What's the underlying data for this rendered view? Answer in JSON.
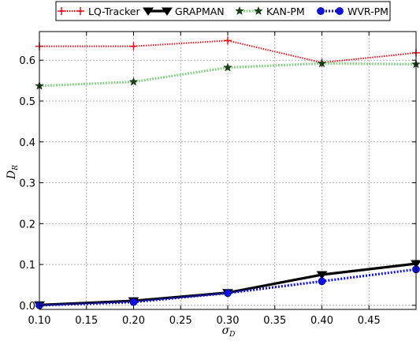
{
  "chart_data": {
    "type": "line",
    "title": "",
    "xlabel": "σ",
    "xlabel_sub": "D",
    "ylabel": "D",
    "ylabel_sub": "R",
    "x": [
      0.1,
      0.2,
      0.3,
      0.4,
      0.5
    ],
    "xlim": [
      0.1,
      0.5
    ],
    "ylim": [
      -0.01,
      0.67
    ],
    "xticks": [
      0.1,
      0.15,
      0.2,
      0.25,
      0.3,
      0.35,
      0.4,
      0.45
    ],
    "xtick_labels": [
      "0.10",
      "0.15",
      "0.20",
      "0.25",
      "0.30",
      "0.35",
      "0.40",
      "0.45"
    ],
    "yticks": [
      0.0,
      0.1,
      0.2,
      0.3,
      0.4,
      0.5,
      0.6
    ],
    "ytick_labels": [
      "0.0",
      "0.1",
      "0.2",
      "0.3",
      "0.4",
      "0.5",
      "0.6"
    ],
    "grid": true,
    "legend_position": "top-center",
    "series": [
      {
        "name": "LQ-Tracker",
        "values": [
          0.634,
          0.634,
          0.648,
          0.594,
          0.618
        ],
        "color": "#e8121c",
        "style": "dashdot",
        "marker": "plus"
      },
      {
        "name": "GRAPMAN",
        "values": [
          0.001,
          0.011,
          0.031,
          0.075,
          0.102
        ],
        "color": "#000000",
        "style": "solid",
        "marker": "triangle-down"
      },
      {
        "name": "KAN-PM",
        "values": [
          0.537,
          0.547,
          0.582,
          0.592,
          0.59
        ],
        "color": "#8fce8f",
        "style": "dotted",
        "marker": "star"
      },
      {
        "name": "WVR-PM",
        "values": [
          0.0,
          0.008,
          0.03,
          0.059,
          0.088
        ],
        "color": "#1010e0",
        "style": "dotted",
        "marker": "circle"
      }
    ]
  }
}
